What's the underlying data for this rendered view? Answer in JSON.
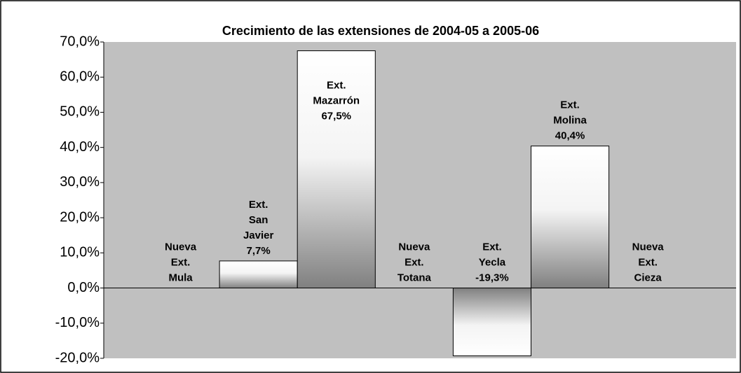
{
  "chart_data": {
    "type": "bar",
    "title": "Crecimiento de las extensiones de 2004-05 a 2005-06",
    "categories": [
      [
        "Nueva",
        "Ext.",
        "Mula"
      ],
      [
        "Ext.",
        "San",
        "Javier"
      ],
      [
        "Ext.",
        "Mazarrón"
      ],
      [
        "Nueva",
        "Ext.",
        "Totana"
      ],
      [
        "Ext.",
        "Yecla"
      ],
      [
        "Ext.",
        "Molina"
      ],
      [
        "Nueva",
        "Ext.",
        "Cieza"
      ]
    ],
    "values": [
      0,
      7.7,
      67.5,
      0,
      -19.3,
      40.4,
      0
    ],
    "value_labels": [
      null,
      "7,7%",
      "67,5%",
      null,
      "-19,3%",
      "40,4%",
      null
    ],
    "ylim": [
      -20,
      70
    ],
    "yticks": [
      {
        "value": -20,
        "label": "-20,0%"
      },
      {
        "value": -10,
        "label": "-10,0%"
      },
      {
        "value": 0,
        "label": "0,0%"
      },
      {
        "value": 10,
        "label": "10,0%"
      },
      {
        "value": 20,
        "label": "20,0%"
      },
      {
        "value": 30,
        "label": "30,0%"
      },
      {
        "value": 40,
        "label": "40,0%"
      },
      {
        "value": 50,
        "label": "50,0%"
      },
      {
        "value": 60,
        "label": "60,0%"
      },
      {
        "value": 70,
        "label": "70,0%"
      }
    ],
    "background": "#c0c0c0",
    "color": "#808080"
  }
}
